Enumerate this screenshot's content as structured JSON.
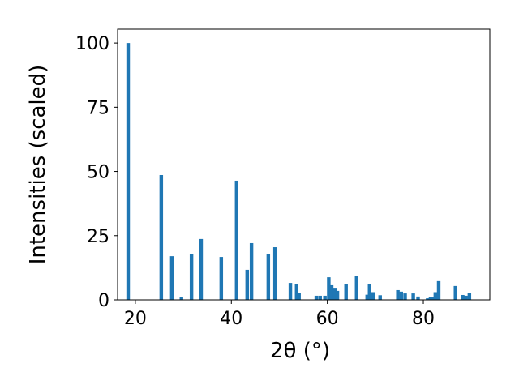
{
  "chart_data": {
    "type": "bar",
    "xlabel": "2θ (°)",
    "ylabel": "Intensities (scaled)",
    "x": [
      18.5,
      25.4,
      27.6,
      29.6,
      31.7,
      33.7,
      37.9,
      41.1,
      43.3,
      44.2,
      47.7,
      49.1,
      52.3,
      53.6,
      54.1,
      57.7,
      58.5,
      59.5,
      60.3,
      60.9,
      61.6,
      62.1,
      63.9,
      66.1,
      68.3,
      68.8,
      69.5,
      71.0,
      74.7,
      75.4,
      76.2,
      77.9,
      78.9,
      80.9,
      81.5,
      82.0,
      82.5,
      83.2,
      86.7,
      88.2,
      88.9,
      89.6
    ],
    "values": [
      100,
      48.6,
      17,
      1,
      17.7,
      23.7,
      16.7,
      46.4,
      11.7,
      22.1,
      17.7,
      20.5,
      6.6,
      6.3,
      2.8,
      1.6,
      1.6,
      1.6,
      8.8,
      5.7,
      4.7,
      3.5,
      6,
      9.2,
      2,
      6,
      3,
      1.8,
      3.8,
      3.2,
      2.5,
      2.5,
      1.3,
      0.6,
      1,
      1.2,
      3,
      7.3,
      5.4,
      1.9,
      1.6,
      2.6
    ],
    "color": "#1f77b4",
    "xlim": [
      16.3,
      93.85
    ],
    "xticks": [
      20,
      40,
      60,
      80
    ],
    "ylim": [
      0,
      105.4
    ],
    "yticks": [
      0,
      25,
      50,
      75,
      100
    ]
  }
}
